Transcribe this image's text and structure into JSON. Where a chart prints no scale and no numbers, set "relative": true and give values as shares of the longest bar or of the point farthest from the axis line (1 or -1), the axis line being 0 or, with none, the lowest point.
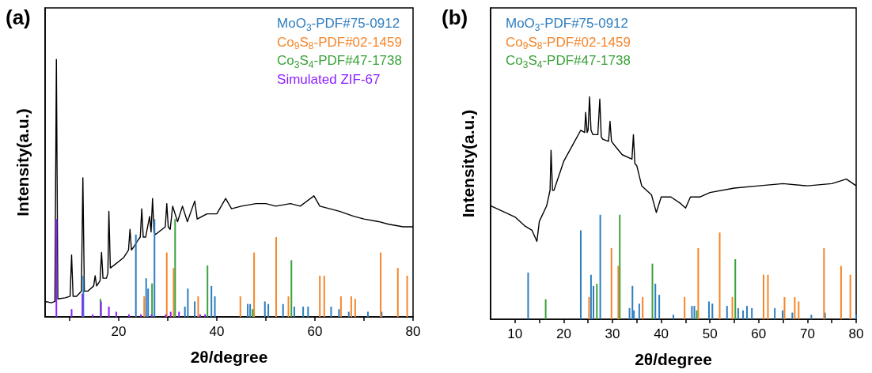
{
  "chart_data": [
    {
      "type": "line",
      "title": "(a)",
      "xlabel": "2θ/degree",
      "ylabel": "Intensity(a.u.)",
      "relative": true,
      "xlim": [
        5,
        80
      ],
      "xticks": [
        {
          "value": 10,
          "label": null
        },
        20,
        {
          "value": 30,
          "label": null
        },
        40,
        {
          "value": 50,
          "label": null
        },
        60,
        {
          "value": 70,
          "label": null
        },
        80
      ],
      "legend": "top right",
      "series": [
        {
          "color": "#000000",
          "x": [
            5,
            6.3,
            7.0,
            7.3,
            7.6,
            9.1,
            10.1,
            10.4,
            10.7,
            11.4,
            12.4,
            12.7,
            13.0,
            13.7,
            14.9,
            15.2,
            15.5,
            16.2,
            16.5,
            16.8,
            17.5,
            17.8,
            18.0,
            18.3,
            19,
            21,
            22.0,
            22.3,
            22.6,
            23,
            24,
            24.4,
            24.7,
            25.0,
            25.5,
            26.3,
            26.6,
            26.9,
            27.2,
            27.5,
            29.5,
            29.8,
            30.1,
            30.5,
            31,
            32,
            33,
            34,
            35.5,
            36,
            38,
            40,
            41.8,
            43,
            45,
            48,
            50,
            52,
            55,
            57,
            59.8,
            61,
            63,
            65,
            68,
            70,
            73,
            75,
            78,
            80
          ],
          "values": [
            0.06,
            0.055,
            0.06,
            1.0,
            0.07,
            0.074,
            0.08,
            0.24,
            0.08,
            0.08,
            0.1,
            0.54,
            0.1,
            0.1,
            0.12,
            0.16,
            0.12,
            0.14,
            0.25,
            0.15,
            0.15,
            0.17,
            0.41,
            0.19,
            0.2,
            0.23,
            0.26,
            0.34,
            0.26,
            0.27,
            0.3,
            0.31,
            0.42,
            0.31,
            0.31,
            0.39,
            0.33,
            0.46,
            0.33,
            0.32,
            0.35,
            0.44,
            0.35,
            0.34,
            0.43,
            0.37,
            0.43,
            0.37,
            0.45,
            0.38,
            0.4,
            0.4,
            0.46,
            0.42,
            0.43,
            0.44,
            0.44,
            0.43,
            0.44,
            0.43,
            0.47,
            0.43,
            0.42,
            0.41,
            0.39,
            0.38,
            0.37,
            0.36,
            0.35,
            0.35
          ]
        },
        {
          "type": "bar",
          "name": "MoO$_{3}$-PDF#75-0912",
          "color": "#2e7ebf",
          "x": [
            12.8,
            23.5,
            25.6,
            26.0,
            27.3,
            33.5,
            34.1,
            35.5,
            38.9,
            39.6,
            46.3,
            46.8,
            49.8,
            50.5,
            53.5,
            55.8,
            57.6,
            58.6,
            63.3,
            64.9,
            66.9,
            70.8,
            73.6
          ],
          "values": [
            0.16,
            0.32,
            0.15,
            0.11,
            0.38,
            0.04,
            0.11,
            0.06,
            0.12,
            0.08,
            0.05,
            0.05,
            0.06,
            0.05,
            0.05,
            0.04,
            0.04,
            0.04,
            0.04,
            0.03,
            0.02,
            0.02,
            0.02
          ]
        },
        {
          "type": "bar",
          "name": "Co$_{9}$S$_{8}$-PDF#02-1459",
          "color": "#f5862a",
          "x": [
            25.2,
            29.8,
            31.2,
            36.2,
            44.8,
            47.6,
            52.1,
            54.6,
            61.0,
            61.9,
            65.3,
            67.4,
            68.2,
            73.4,
            76.9,
            78.8
          ],
          "values": [
            0.08,
            0.25,
            0.19,
            0.08,
            0.08,
            0.25,
            0.31,
            0.08,
            0.16,
            0.16,
            0.08,
            0.08,
            0.07,
            0.25,
            0.19,
            0.16
          ]
        },
        {
          "type": "bar",
          "name": "Co$_{3}$S$_{4}$-PDF#47-1738",
          "color": "#3aa23a",
          "x": [
            16.3,
            26.8,
            31.5,
            38.1,
            47.3,
            55.2
          ],
          "values": [
            0.07,
            0.13,
            0.38,
            0.2,
            0.03,
            0.22
          ]
        },
        {
          "type": "bar",
          "name": "Simulated ZIF-67",
          "color": "#8f1fff",
          "x": [
            7.3,
            10.4,
            12.6,
            14.7,
            16.4,
            18.0,
            19.5,
            22.1,
            24.5,
            26.7,
            29.6,
            30.6,
            32.3,
            36.6,
            37.6
          ],
          "values": [
            0.38,
            0.03,
            0.09,
            0.01,
            0.06,
            0.04,
            0.02,
            0.01,
            0.01,
            0.01,
            0.01,
            0.02,
            0.02,
            0.01,
            0.01
          ]
        }
      ]
    },
    {
      "type": "line",
      "title": "(b)",
      "xlabel": "2θ/degree",
      "ylabel": "Intensity(a.u.)",
      "relative": true,
      "xlim": [
        5,
        80
      ],
      "xticks": [
        10,
        {
          "value": 15,
          "label": null
        },
        20,
        {
          "value": 25,
          "label": null
        },
        30,
        {
          "value": 35,
          "label": null
        },
        40,
        {
          "value": 45,
          "label": null
        },
        50,
        {
          "value": 55,
          "label": null
        },
        60,
        {
          "value": 65,
          "label": null
        },
        70,
        {
          "value": 75,
          "label": null
        },
        80
      ],
      "legend": "top left",
      "series": [
        {
          "color": "#000000",
          "x": [
            5,
            8,
            10,
            12,
            13.5,
            14.5,
            15,
            16.5,
            17.2,
            17.4,
            17.7,
            18,
            20,
            22,
            23.5,
            24.3,
            24.5,
            24.8,
            25.0,
            25.3,
            25.6,
            26,
            27.0,
            27.4,
            27.7,
            28,
            29.2,
            29.5,
            29.8,
            30.5,
            32,
            34.0,
            34.3,
            34.6,
            35,
            36,
            38,
            39,
            40,
            42,
            44,
            45,
            46,
            48,
            50,
            55,
            60,
            65,
            70,
            75,
            78,
            80
          ],
          "values": [
            0.51,
            0.48,
            0.46,
            0.42,
            0.4,
            0.35,
            0.44,
            0.51,
            0.58,
            0.76,
            0.58,
            0.58,
            0.71,
            0.79,
            0.85,
            0.84,
            0.93,
            0.84,
            0.85,
            1.0,
            0.85,
            0.83,
            0.83,
            0.99,
            0.82,
            0.81,
            0.8,
            0.89,
            0.8,
            0.78,
            0.74,
            0.72,
            0.83,
            0.7,
            0.69,
            0.6,
            0.56,
            0.48,
            0.55,
            0.55,
            0.52,
            0.5,
            0.55,
            0.55,
            0.57,
            0.59,
            0.6,
            0.61,
            0.6,
            0.61,
            0.63,
            0.6
          ]
        },
        {
          "type": "bar",
          "name": "MoO$_{3}$-PDF#75-0912",
          "color": "#2e7ebf",
          "x": [
            12.7,
            23.5,
            25.6,
            26.1,
            27.5,
            33.5,
            34.1,
            34.4,
            35.5,
            38.8,
            39.6,
            42.5,
            46.3,
            46.8,
            49.8,
            50.5,
            52.1,
            53.5,
            55.8,
            56.8,
            57.6,
            58.6,
            63.3,
            64.9,
            65.4,
            66.9,
            70.8,
            73.6,
            80
          ],
          "values": [
            0.21,
            0.4,
            0.2,
            0.15,
            0.47,
            0.05,
            0.15,
            0.04,
            0.07,
            0.16,
            0.11,
            0.02,
            0.06,
            0.06,
            0.08,
            0.07,
            null,
            0.06,
            0.05,
            0.04,
            0.06,
            0.05,
            0.05,
            0.04,
            null,
            0.03,
            0.02,
            0.03,
            0.02
          ]
        },
        {
          "type": "bar",
          "name": "Co$_{9}$S$_{8}$-PDF#02-1459",
          "color": "#f5862a",
          "x": [
            25.2,
            29.8,
            31.2,
            36.2,
            44.8,
            47.6,
            52.0,
            54.6,
            61.0,
            61.9,
            65.3,
            67.4,
            68.2,
            73.4,
            76.9,
            78.8
          ],
          "values": [
            0.1,
            0.32,
            0.24,
            0.1,
            0.1,
            0.32,
            0.39,
            0.1,
            0.2,
            0.2,
            0.1,
            0.1,
            0.08,
            0.32,
            0.24,
            0.2
          ]
        },
        {
          "type": "bar",
          "name": "Co$_{3}$S$_{4}$-PDF#47-1738",
          "color": "#3aa23a",
          "x": [
            16.3,
            26.8,
            31.5,
            38.2,
            47.3,
            55.2
          ],
          "values": [
            0.09,
            0.16,
            0.47,
            0.25,
            0.04,
            0.27
          ]
        }
      ]
    }
  ]
}
